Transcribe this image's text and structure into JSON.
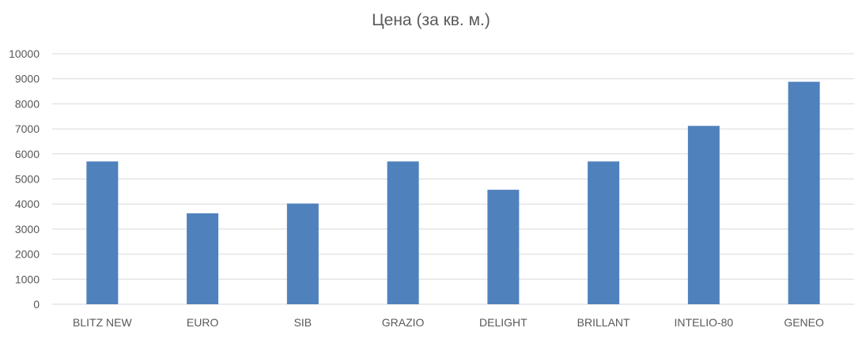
{
  "chart_data": {
    "type": "bar",
    "title": "Цена (за кв. м.)",
    "xlabel": "",
    "ylabel": "",
    "categories": [
      "BLITZ NEW",
      "EURO",
      "SIB",
      "GRAZIO",
      "DELIGHT",
      "BRILLANT",
      "INTELIO-80",
      "GENEO"
    ],
    "series": [
      {
        "values": [
          5700,
          3630,
          4020,
          5700,
          4570,
          5700,
          7120,
          8880
        ]
      }
    ],
    "ylim": [
      0,
      10000
    ],
    "yticks": [
      "0",
      "1000",
      "2000",
      "3000",
      "4000",
      "5000",
      "6000",
      "7000",
      "8000",
      "9000",
      "10000"
    ],
    "grid": true,
    "legend": "none",
    "colors": {
      "bar": "#4f81bd",
      "grid": "#d9d9d9",
      "text": "#595959"
    }
  }
}
